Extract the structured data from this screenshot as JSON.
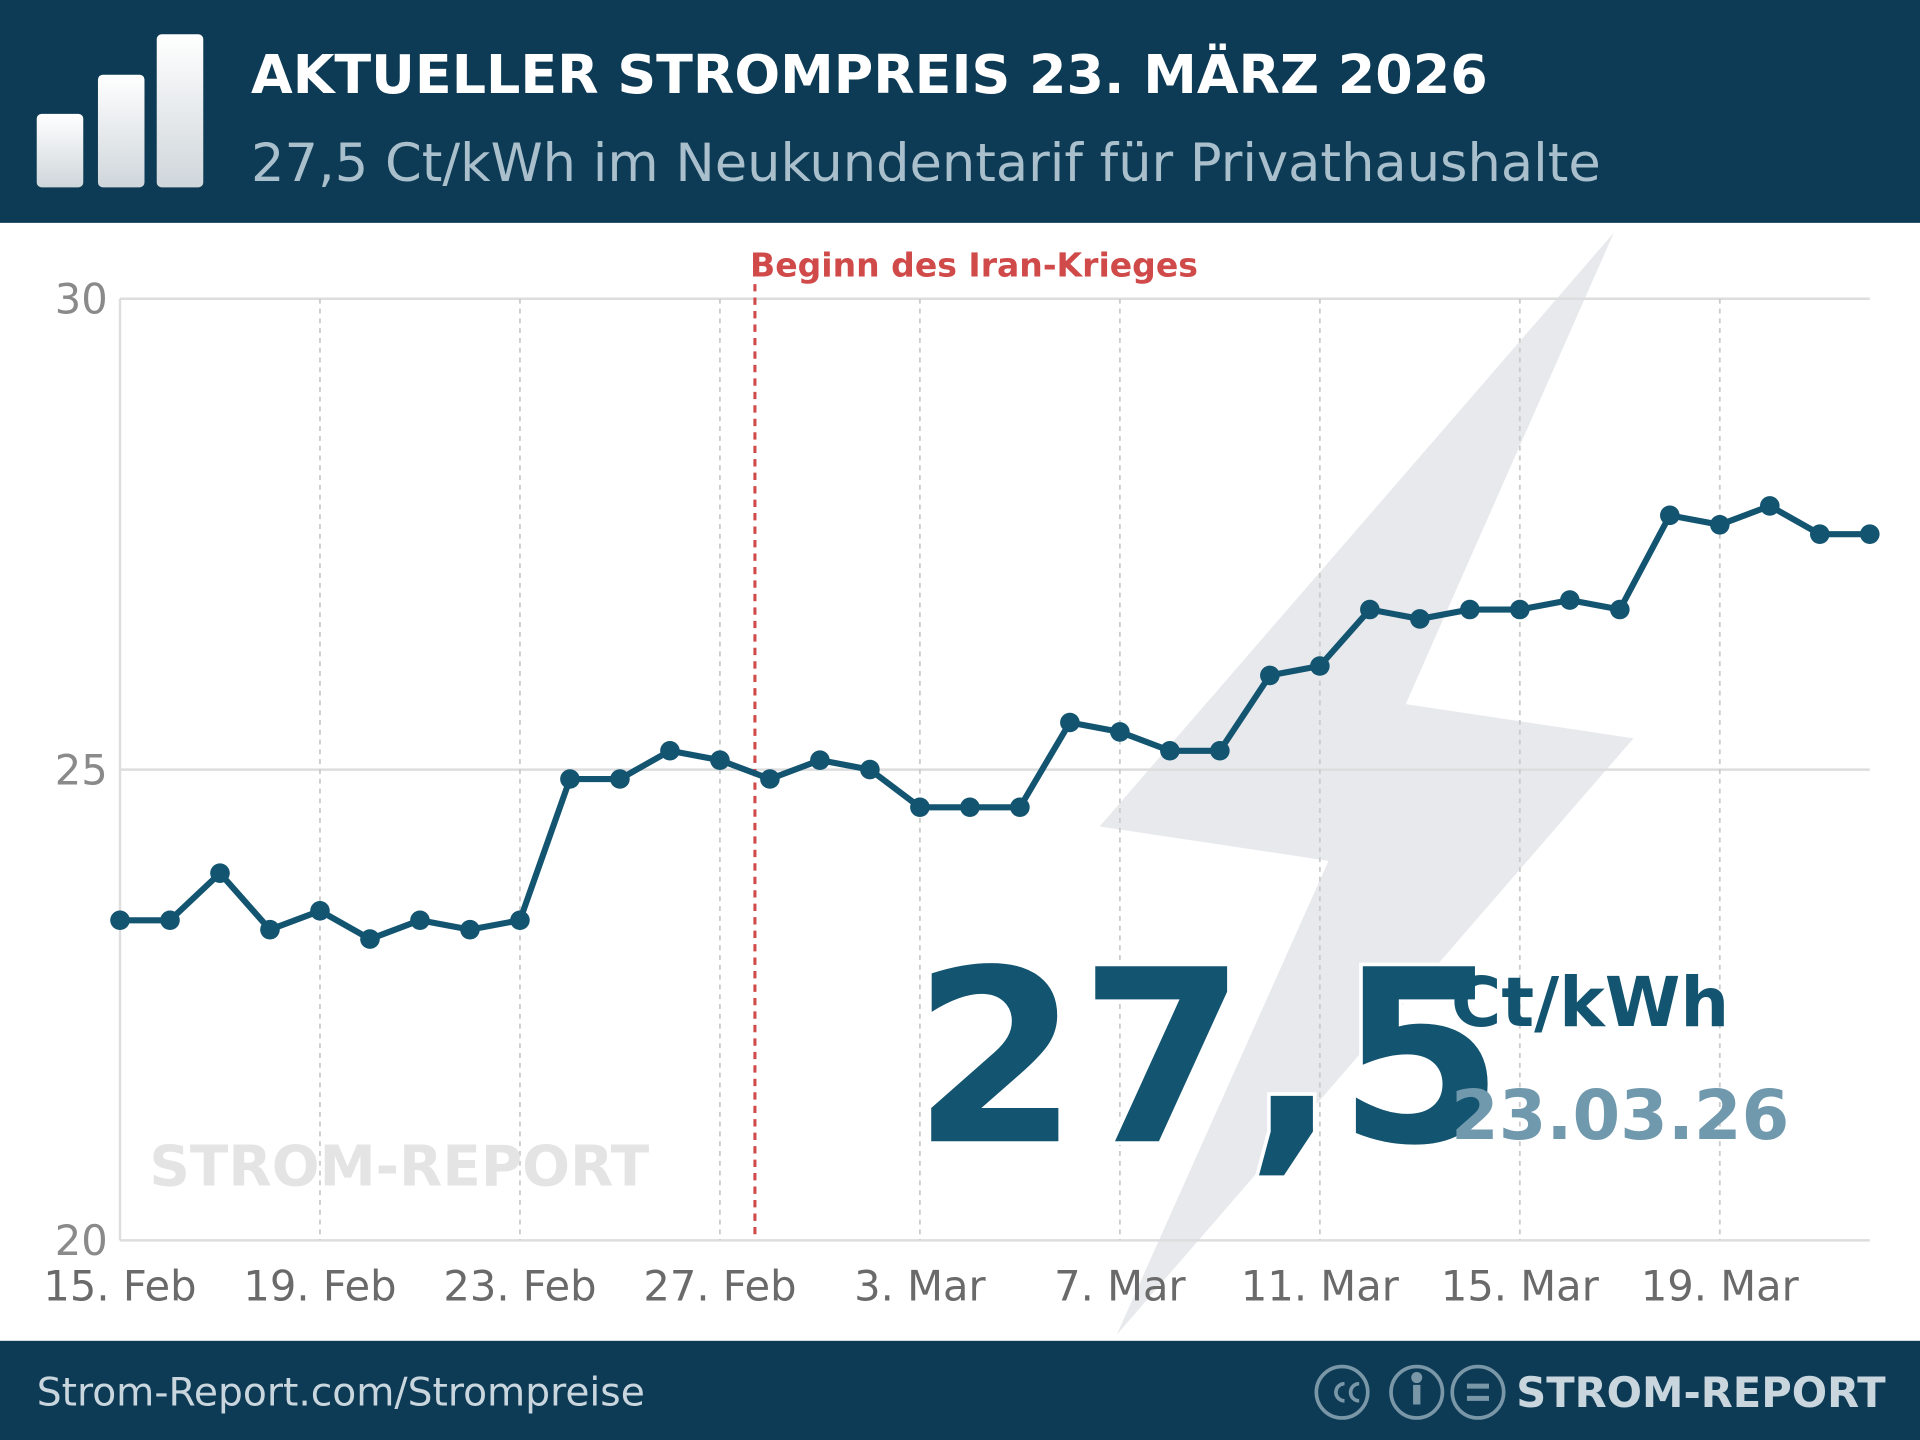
{
  "header": {
    "title": "AKTUELLER STROMPREIS 23. MÄRZ 2026",
    "subtitle": "27,5 Ct/kWh im Neukundentarif für Privathaushalte"
  },
  "chart_data": {
    "type": "line",
    "categories": [
      "15. Feb",
      null,
      null,
      null,
      "19. Feb",
      null,
      null,
      null,
      "23. Feb",
      null,
      null,
      null,
      "27. Feb",
      null,
      null,
      null,
      "3. Mar",
      null,
      null,
      null,
      "7. Mar",
      null,
      null,
      null,
      "11. Mar",
      null,
      null,
      null,
      "15. Mar",
      null,
      null,
      null,
      "19. Mar",
      null,
      null,
      null
    ],
    "values": [
      23.4,
      23.4,
      23.9,
      23.3,
      23.5,
      23.2,
      23.4,
      23.3,
      23.4,
      24.9,
      24.9,
      25.2,
      25.1,
      24.9,
      25.1,
      25.0,
      24.6,
      24.6,
      24.6,
      25.5,
      25.4,
      25.2,
      25.2,
      26.0,
      26.1,
      26.7,
      26.6,
      26.7,
      26.7,
      26.8,
      26.7,
      27.7,
      27.6,
      27.8,
      27.5,
      27.5
    ],
    "color": "#135470",
    "ylim": [
      20,
      30
    ],
    "yticks": [
      20,
      25,
      30
    ],
    "grid": true,
    "annotation": {
      "label": "Beginn des Iran-Krieges",
      "x": 12.7,
      "color": "#d04a4a"
    },
    "current": {
      "value": "27,5",
      "unit": "Ct/kWh",
      "date": "23.03.26"
    },
    "watermark": "STROM-REPORT"
  },
  "footer": {
    "url": "Strom-Report.com/Strompreise",
    "brand": "STROM-REPORT"
  }
}
